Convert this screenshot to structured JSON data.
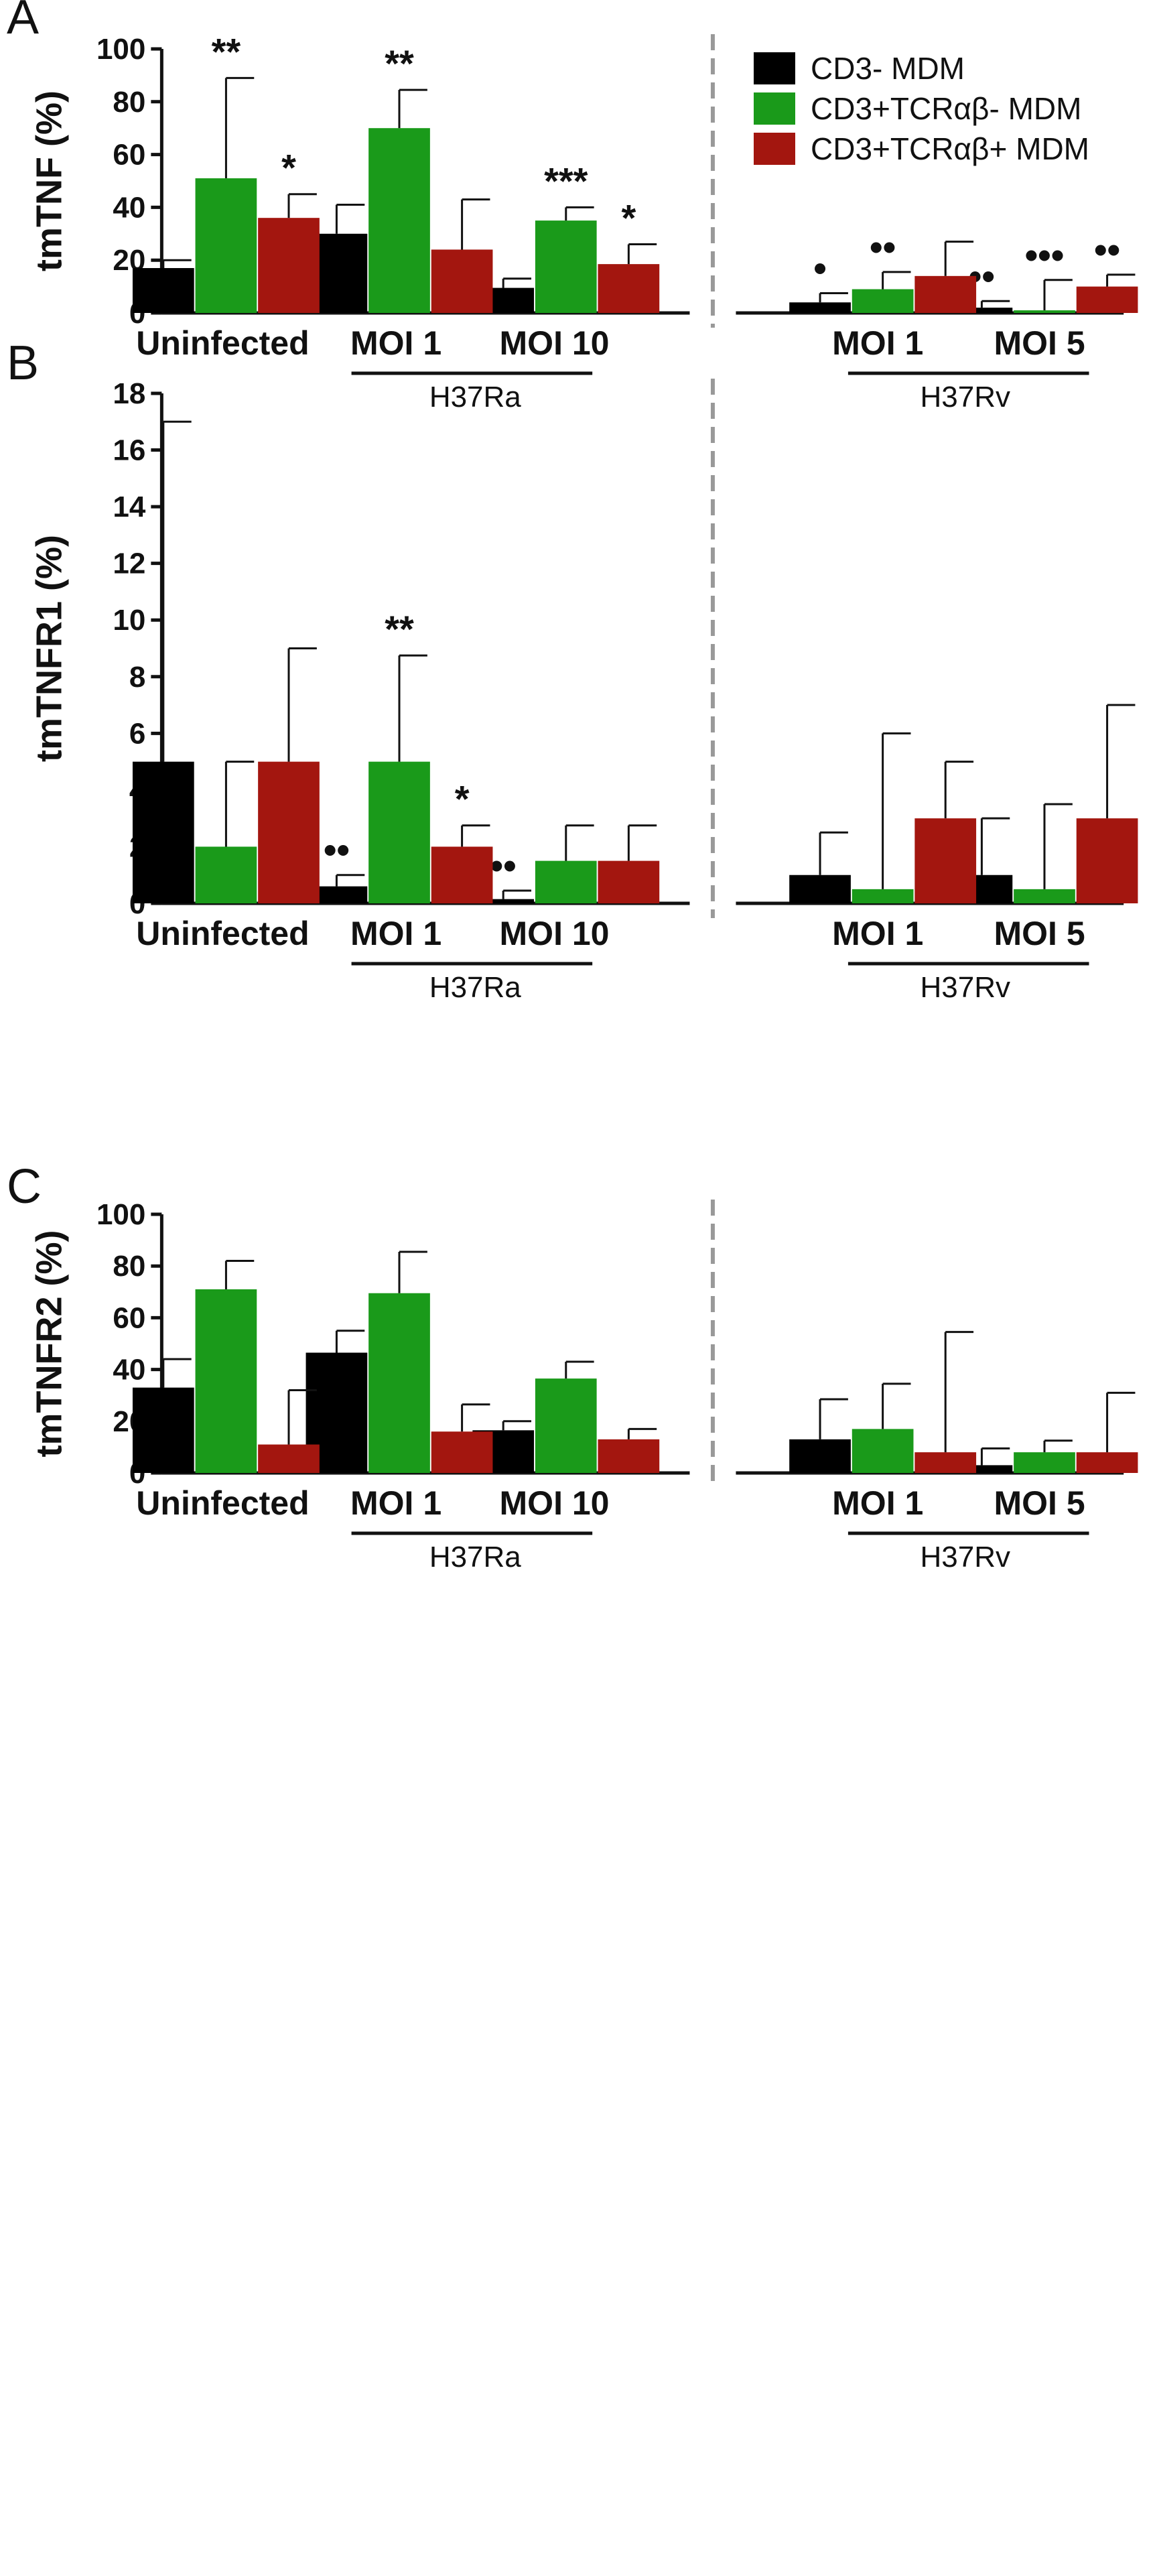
{
  "legend": [
    {
      "label": "CD3- MDM",
      "color": "#000000"
    },
    {
      "label": "CD3+TCRαβ- MDM",
      "color": "#1a9a1a"
    },
    {
      "label": "CD3+TCRαβ+ MDM",
      "color": "#a3160f"
    }
  ],
  "chart_data": [
    {
      "panel": "A",
      "type": "bar",
      "ylabel": "tmTNF (%)",
      "ylim": [
        0,
        100
      ],
      "yticks": [
        0,
        20,
        40,
        60,
        80,
        100
      ],
      "categories": [
        "Uninfected",
        "MOI 1",
        "MOI 10",
        "MOI 1",
        "MOI 5"
      ],
      "groups": [
        {
          "label": "H37Ra",
          "categories": [
            "MOI 1",
            "MOI 10"
          ]
        },
        {
          "label": "H37Rv",
          "categories": [
            "MOI 1",
            "MOI 5"
          ]
        }
      ],
      "series": [
        {
          "name": "CD3- MDM",
          "values": [
            17,
            30,
            9.5,
            4,
            2
          ],
          "errors": [
            3,
            11,
            3.5,
            3.5,
            2.5
          ],
          "marks": [
            "",
            "",
            "",
            "•",
            "••"
          ]
        },
        {
          "name": "CD3+TCRαβ- MDM",
          "values": [
            51,
            70,
            35,
            9,
            1
          ],
          "errors": [
            38,
            14.5,
            5,
            6.5,
            11.5
          ],
          "marks": [
            "**",
            "**",
            "***",
            "••",
            "•••"
          ]
        },
        {
          "name": "CD3+TCRαβ+ MDM",
          "values": [
            36,
            24,
            18.5,
            14,
            10
          ],
          "errors": [
            9,
            19,
            7.5,
            13,
            4.5
          ],
          "marks": [
            "*",
            "",
            "*",
            "",
            "••"
          ]
        }
      ]
    },
    {
      "panel": "B",
      "type": "bar",
      "ylabel": "tmTNFR1 (%)",
      "ylim": [
        0,
        18
      ],
      "yticks": [
        0,
        2,
        4,
        6,
        8,
        10,
        12,
        14,
        16,
        18
      ],
      "categories": [
        "Uninfected",
        "MOI 1",
        "MOI 10",
        "MOI 1",
        "MOI 5"
      ],
      "groups": [
        {
          "label": "H37Ra",
          "categories": [
            "MOI 1",
            "MOI 10"
          ]
        },
        {
          "label": "H37Rv",
          "categories": [
            "MOI 1",
            "MOI 5"
          ]
        }
      ],
      "series": [
        {
          "name": "CD3- MDM",
          "values": [
            5,
            0.6,
            0.15,
            1,
            1
          ],
          "errors": [
            12,
            0.4,
            0.3,
            1.5,
            2
          ],
          "marks": [
            "",
            "••",
            "••",
            "",
            ""
          ]
        },
        {
          "name": "CD3+TCRαβ- MDM",
          "values": [
            2,
            5,
            1.5,
            0.5,
            0.5
          ],
          "errors": [
            3,
            3.75,
            1.25,
            5.5,
            3
          ],
          "marks": [
            "",
            "**",
            "",
            "",
            ""
          ]
        },
        {
          "name": "CD3+TCRαβ+ MDM",
          "values": [
            5,
            2,
            1.5,
            3,
            3
          ],
          "errors": [
            4,
            0.75,
            1.25,
            2,
            4
          ],
          "marks": [
            "",
            "*",
            "",
            "",
            ""
          ]
        }
      ]
    },
    {
      "panel": "C",
      "type": "bar",
      "ylabel": "tmTNFR2 (%)",
      "ylim": [
        0,
        100
      ],
      "yticks": [
        0,
        20,
        40,
        60,
        80,
        100
      ],
      "categories": [
        "Uninfected",
        "MOI 1",
        "MOI 10",
        "MOI 1",
        "MOI 5"
      ],
      "groups": [
        {
          "label": "H37Ra",
          "categories": [
            "MOI 1",
            "MOI 10"
          ]
        },
        {
          "label": "H37Rv",
          "categories": [
            "MOI 1",
            "MOI 5"
          ]
        }
      ],
      "series": [
        {
          "name": "CD3- MDM",
          "values": [
            33,
            46.5,
            16.5,
            13,
            3
          ],
          "errors": [
            11,
            8.5,
            3.5,
            15.5,
            6.5
          ],
          "marks": [
            "",
            "",
            "",
            "",
            ""
          ]
        },
        {
          "name": "CD3+TCRαβ- MDM",
          "values": [
            71,
            69.5,
            36.5,
            17,
            8
          ],
          "errors": [
            11,
            16,
            6.5,
            17.5,
            4.5
          ],
          "marks": [
            "",
            "",
            "",
            "",
            ""
          ]
        },
        {
          "name": "CD3+TCRαβ+ MDM",
          "values": [
            11,
            16,
            13,
            8,
            8
          ],
          "errors": [
            21,
            10.5,
            4,
            46.5,
            23
          ],
          "marks": [
            "",
            "",
            "",
            "",
            ""
          ]
        }
      ]
    }
  ]
}
